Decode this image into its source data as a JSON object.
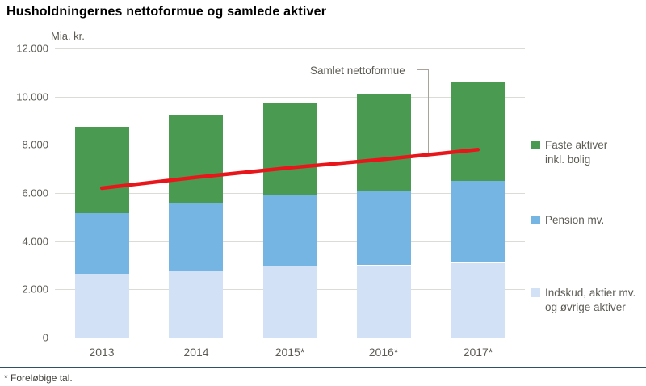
{
  "title": "Husholdningernes nettoformue og samlede aktiver",
  "footnote": "* Foreløbige tal.",
  "annotation": {
    "label": "Samlet nettoformue"
  },
  "legend": {
    "items": [
      {
        "name": "faste-aktiver",
        "lines": [
          "Faste aktiver",
          "inkl. bolig"
        ],
        "color": "#4a9a52"
      },
      {
        "name": "pension",
        "lines": [
          "Pension mv.",
          ""
        ],
        "color": "#74b5e3"
      },
      {
        "name": "indskud",
        "lines": [
          "Indskud, aktier mv.",
          "og øvrige aktiver"
        ],
        "color": "#d2e1f6"
      }
    ]
  },
  "chart_data": {
    "type": "bar",
    "subtype": "stacked-bar-with-line",
    "title": "Husholdningernes nettoformue og samlede aktiver",
    "xlabel": "",
    "ylabel": "Mia. kr.",
    "ylim": [
      0,
      12000
    ],
    "grid": true,
    "legend_position": "right",
    "categories": [
      "2013",
      "2014",
      "2015*",
      "2016*",
      "2017*"
    ],
    "y_tick_labels": [
      "0",
      "2.000",
      "4.000",
      "6.000",
      "8.000",
      "10.000",
      "12.000"
    ],
    "y_tick_values": [
      0,
      2000,
      4000,
      6000,
      8000,
      10000,
      12000
    ],
    "series": [
      {
        "name": "Indskud, aktier mv. og øvrige aktiver",
        "type": "bar-stack",
        "color": "#d2e1f6",
        "values": [
          2650,
          2750,
          2950,
          3000,
          3100
        ]
      },
      {
        "name": "Pension mv.",
        "type": "bar-stack",
        "color": "#74b5e3",
        "values": [
          2500,
          2850,
          2950,
          3100,
          3400
        ]
      },
      {
        "name": "Faste aktiver inkl. bolig",
        "type": "bar-stack",
        "color": "#4a9a52",
        "values": [
          3600,
          3650,
          3850,
          4000,
          4100
        ]
      }
    ],
    "line_series": {
      "name": "Samlet nettoformue",
      "type": "line",
      "color": "#e8161a",
      "values": [
        6200,
        6650,
        7050,
        7400,
        7800
      ]
    },
    "stack_totals": [
      8750,
      9250,
      9750,
      10100,
      10600
    ]
  }
}
